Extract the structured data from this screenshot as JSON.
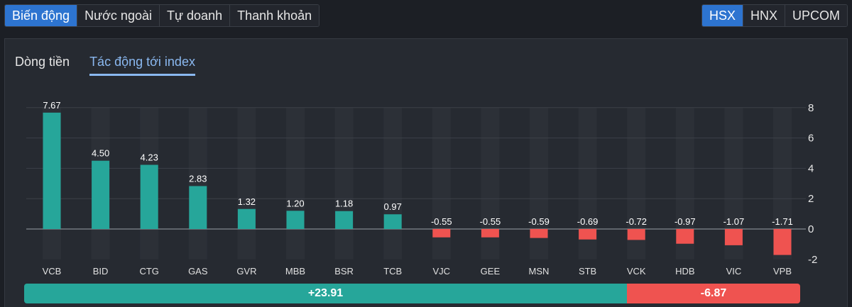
{
  "top_tabs": [
    {
      "label": "Biến động",
      "active": true
    },
    {
      "label": "Nước ngoài",
      "active": false
    },
    {
      "label": "Tự doanh",
      "active": false
    },
    {
      "label": "Thanh khoản",
      "active": false
    }
  ],
  "exchange_tabs": [
    {
      "label": "HSX",
      "active": true
    },
    {
      "label": "HNX",
      "active": false
    },
    {
      "label": "UPCOM",
      "active": false
    }
  ],
  "sub_tabs": [
    {
      "label": "Dòng tiền",
      "active": false
    },
    {
      "label": "Tác động tới index",
      "active": true
    }
  ],
  "colors": {
    "positive": "#26a69a",
    "negative": "#ef5350",
    "accent": "#2d74d0"
  },
  "chart_data": {
    "type": "bar",
    "categories": [
      "VCB",
      "BID",
      "CTG",
      "GAS",
      "GVR",
      "MBB",
      "BSR",
      "TCB",
      "VJC",
      "GEE",
      "MSN",
      "STB",
      "VCK",
      "HDB",
      "VIC",
      "VPB"
    ],
    "values": [
      7.67,
      4.5,
      4.23,
      2.83,
      1.32,
      1.2,
      1.18,
      0.97,
      -0.55,
      -0.55,
      -0.59,
      -0.69,
      -0.72,
      -0.97,
      -1.07,
      -1.71
    ],
    "value_labels": [
      "7.67",
      "4.50",
      "4.23",
      "2.83",
      "1.32",
      "1.20",
      "1.18",
      "0.97",
      "-0.55",
      "-0.55",
      "-0.59",
      "-0.69",
      "-0.72",
      "-0.97",
      "-1.07",
      "-1.71"
    ],
    "yticks": [
      "8",
      "6",
      "4",
      "2",
      "0",
      "-2"
    ],
    "ylim": [
      -2,
      8
    ],
    "grid": true,
    "title": "",
    "xlabel": "",
    "ylabel": ""
  },
  "summary": {
    "positive_label": "+23.91",
    "negative_label": "-6.87",
    "positive_value": 23.91,
    "negative_value": 6.87
  }
}
